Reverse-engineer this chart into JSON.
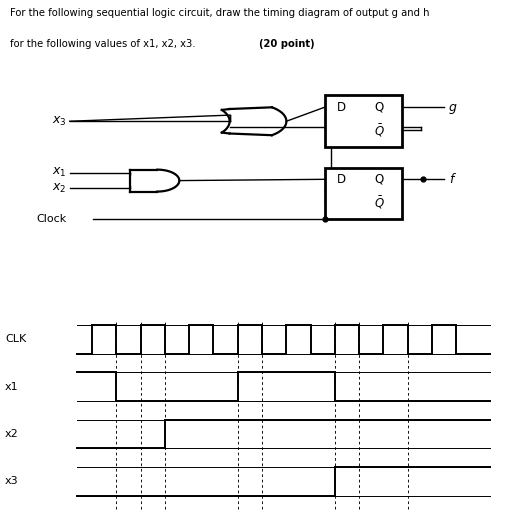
{
  "title_line1": "For the following sequential logic circuit, draw the timing diagram of output g and h",
  "title_line2_normal": "for the following values of x1, x2, x3. ",
  "title_line2_bold": "(20 point)",
  "bg_color": "#ffffff",
  "clk_signal": [
    0,
    0,
    0.3,
    0,
    0.3,
    1,
    0.8,
    1,
    0.8,
    0,
    1.3,
    0,
    1.3,
    1,
    1.8,
    1,
    1.8,
    0,
    2.3,
    0,
    2.3,
    1,
    2.8,
    1,
    2.8,
    0,
    3.3,
    0,
    3.3,
    1,
    3.8,
    1,
    3.8,
    0,
    4.3,
    0,
    4.3,
    1,
    4.8,
    1,
    4.8,
    0,
    5.3,
    0,
    5.3,
    1,
    5.8,
    1,
    5.8,
    0,
    6.3,
    0,
    6.3,
    1,
    6.8,
    1,
    6.8,
    0,
    7.3,
    0,
    7.3,
    1,
    7.8,
    1,
    7.8,
    0,
    8.5,
    0
  ],
  "x1_signal": [
    0,
    1,
    0.8,
    1,
    0.8,
    0,
    3.3,
    0,
    3.3,
    1,
    5.3,
    1,
    5.3,
    0,
    8.5,
    0
  ],
  "x2_signal": [
    0,
    0,
    1.8,
    0,
    1.8,
    1,
    8.5,
    1
  ],
  "x3_signal": [
    0,
    0,
    5.3,
    0,
    5.3,
    1,
    8.5,
    1
  ],
  "signal_labels": [
    "CLK",
    "x1",
    "x2",
    "x3"
  ],
  "dashed_x": [
    0.8,
    1.3,
    1.8,
    3.3,
    3.8,
    5.3,
    5.8,
    6.8
  ]
}
